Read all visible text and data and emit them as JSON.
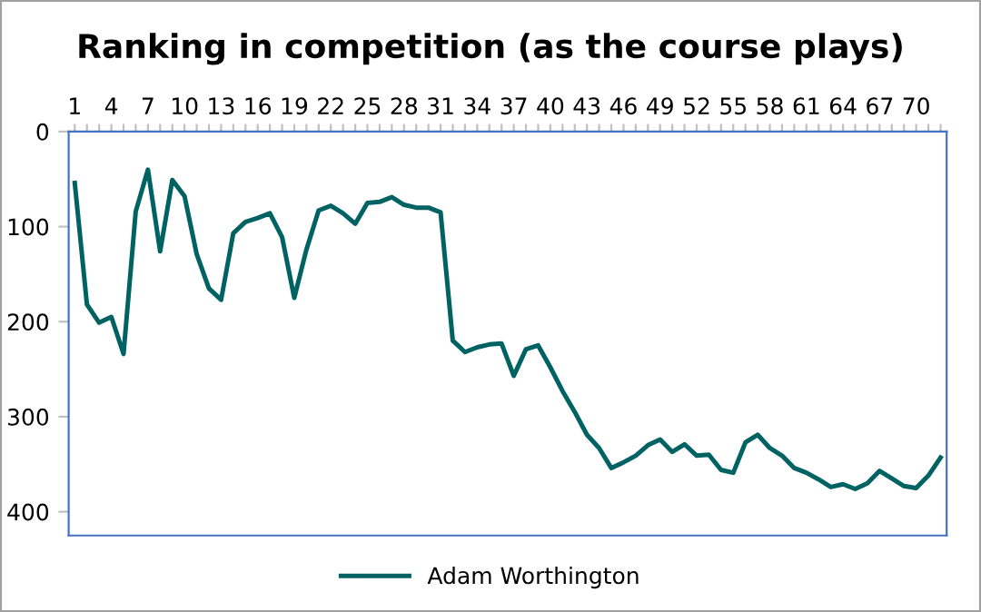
{
  "chart_data": {
    "type": "line",
    "title": "Ranking in competition (as the course plays)",
    "categories": [
      "1",
      null,
      null,
      "4",
      null,
      null,
      "7",
      null,
      null,
      "10",
      null,
      null,
      "13",
      null,
      null,
      "16",
      null,
      null,
      "19",
      null,
      null,
      "22",
      null,
      null,
      "25",
      null,
      null,
      "28",
      null,
      null,
      "31",
      null,
      null,
      "34",
      null,
      null,
      "37",
      null,
      null,
      "40",
      null,
      null,
      "43",
      null,
      null,
      "46",
      null,
      null,
      "49",
      null,
      null,
      "52",
      null,
      null,
      "55",
      null,
      null,
      "58",
      null,
      null,
      "61",
      null,
      null,
      "64",
      null,
      null,
      "67",
      null,
      null,
      "70",
      null,
      null
    ],
    "series": [
      {
        "name": "Adam Worthington",
        "color": "#006262",
        "values": [
          54,
          182,
          201,
          195,
          234,
          84,
          40,
          126,
          51,
          68,
          129,
          165,
          177,
          107,
          95,
          91,
          86,
          111,
          175,
          124,
          83,
          78,
          86,
          97,
          75,
          74,
          69,
          77,
          80,
          80,
          85,
          220,
          232,
          227,
          224,
          223,
          257,
          229,
          225,
          248,
          273,
          295,
          319,
          333,
          354,
          348,
          341,
          330,
          324,
          337,
          329,
          341,
          340,
          356,
          359,
          327,
          319,
          333,
          341,
          354,
          359,
          366,
          374,
          371,
          376,
          370,
          357,
          365,
          373,
          375,
          362,
          343
        ]
      }
    ],
    "ylim": [
      425,
      0
    ],
    "yticks": [
      0,
      100,
      200,
      300,
      400
    ],
    "grid": false,
    "legend": "bottom",
    "marker": "none",
    "line_style": "solid"
  }
}
